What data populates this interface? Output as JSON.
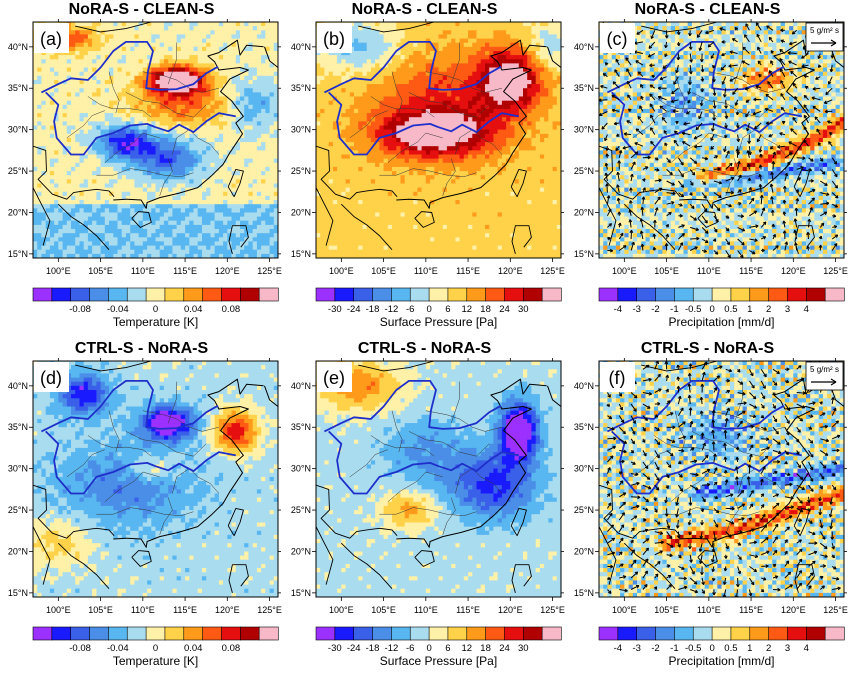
{
  "lon_ticks": [
    "100°E",
    "105°E",
    "110°E",
    "115°E",
    "120°E",
    "125°E"
  ],
  "lat_ticks": [
    "40°N",
    "35°N",
    "30°N",
    "25°N",
    "20°N",
    "15°N"
  ],
  "colorbars": {
    "temperature": {
      "label": "Temperature [K]",
      "ticks": [
        "-0.08",
        "-0.04",
        "0",
        "0.04",
        "0.08"
      ],
      "colors": [
        "#9b30ff",
        "#1a1aff",
        "#3a5fe8",
        "#4a8ee8",
        "#58b6f0",
        "#a9dcef",
        "#fff1a8",
        "#ffd24a",
        "#ff9a1a",
        "#ff5a14",
        "#e60f0f",
        "#b00000",
        "#f7b8c8"
      ]
    },
    "pressure": {
      "label": "Surface Pressure [Pa]",
      "ticks": [
        "-30",
        "-24",
        "-18",
        "-12",
        "-6",
        "0",
        "6",
        "12",
        "18",
        "24",
        "30"
      ],
      "colors": [
        "#9b30ff",
        "#1a1aff",
        "#3a5fe8",
        "#4a8ee8",
        "#58b6f0",
        "#a9dcef",
        "#fff1a8",
        "#ffd24a",
        "#ff9a1a",
        "#ff5a14",
        "#e60f0f",
        "#b00000",
        "#f7b8c8"
      ]
    },
    "precipitation": {
      "label": "Precipitation [mm/d]",
      "ticks": [
        "-4",
        "-3",
        "-2",
        "-1",
        "-0.5",
        "0",
        "0.5",
        "1",
        "2",
        "3",
        "4"
      ],
      "colors": [
        "#9b30ff",
        "#1a1aff",
        "#3a5fe8",
        "#4a8ee8",
        "#58b6f0",
        "#a9dcef",
        "#fff1a8",
        "#ffd24a",
        "#ff9a1a",
        "#ff5a14",
        "#e60f0f",
        "#b00000",
        "#f7b8c8"
      ]
    }
  },
  "vector_legend": {
    "text": "5 g/m² s"
  },
  "panels": [
    {
      "label": "(a)",
      "title": "NoRA-S - CLEAN-S",
      "variable": "temperature",
      "vectors": false,
      "pattern": "temp_a"
    },
    {
      "label": "(b)",
      "title": "NoRA-S - CLEAN-S",
      "variable": "pressure",
      "vectors": false,
      "pattern": "pres_b"
    },
    {
      "label": "(c)",
      "title": "NoRA-S - CLEAN-S",
      "variable": "precipitation",
      "vectors": true,
      "pattern": "prec_c"
    },
    {
      "label": "(d)",
      "title": "CTRL-S - NoRA-S",
      "variable": "temperature",
      "vectors": false,
      "pattern": "temp_d"
    },
    {
      "label": "(e)",
      "title": "CTRL-S - NoRA-S",
      "variable": "pressure",
      "vectors": false,
      "pattern": "pres_e"
    },
    {
      "label": "(f)",
      "title": "CTRL-S - NoRA-S",
      "variable": "precipitation",
      "vectors": true,
      "pattern": "prec_f"
    }
  ]
}
